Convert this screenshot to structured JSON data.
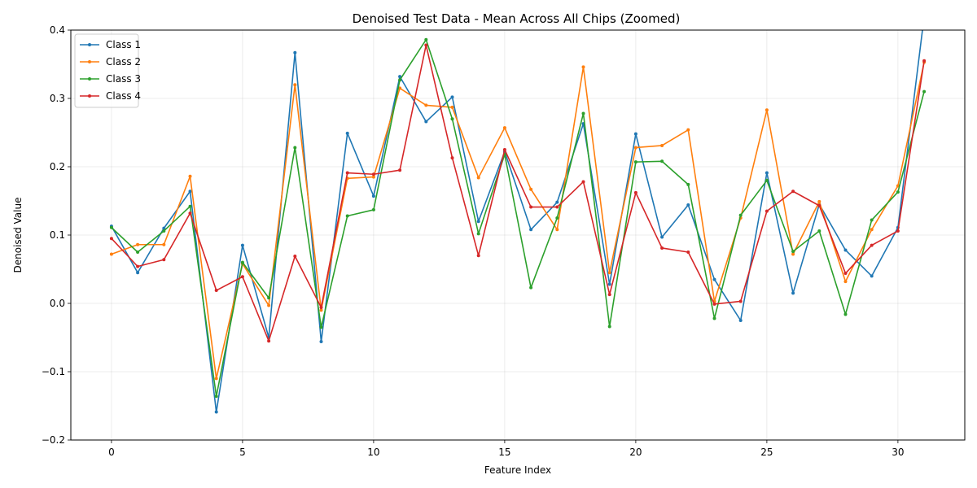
{
  "chart_data": {
    "type": "line",
    "title": "Denoised Test Data - Mean Across All Chips (Zoomed)",
    "xlabel": "Feature Index",
    "ylabel": "Denoised Value",
    "xlim": [
      -1.55,
      32.55
    ],
    "ylim": [
      -0.2,
      0.4
    ],
    "xticks": [
      0,
      5,
      10,
      15,
      20,
      25,
      30
    ],
    "yticks": [
      -0.2,
      -0.1,
      0.0,
      0.1,
      0.2,
      0.3,
      0.4
    ],
    "ytick_labels": [
      "−0.2",
      "−0.1",
      "0.0",
      "0.1",
      "0.2",
      "0.3",
      "0.4"
    ],
    "grid": true,
    "legend_position": "top-left",
    "x": [
      0,
      1,
      2,
      3,
      4,
      5,
      6,
      7,
      8,
      9,
      10,
      11,
      12,
      13,
      14,
      15,
      16,
      17,
      18,
      19,
      20,
      21,
      22,
      23,
      24,
      25,
      26,
      27,
      28,
      29,
      30,
      31
    ],
    "series": [
      {
        "name": "Class 1",
        "color": "#1f77b4",
        "values": [
          0.113,
          0.045,
          0.11,
          0.164,
          -0.159,
          0.085,
          -0.05,
          0.367,
          -0.056,
          0.249,
          0.157,
          0.332,
          0.266,
          0.302,
          0.12,
          0.222,
          0.108,
          0.148,
          0.263,
          0.028,
          0.248,
          0.097,
          0.144,
          0.035,
          -0.025,
          0.191,
          0.015,
          0.145,
          0.078,
          0.04,
          0.111,
          0.42
        ]
      },
      {
        "name": "Class 2",
        "color": "#ff7f0e",
        "values": [
          0.072,
          0.086,
          0.086,
          0.186,
          -0.11,
          0.058,
          -0.003,
          0.32,
          -0.01,
          0.183,
          0.185,
          0.315,
          0.29,
          0.287,
          0.184,
          0.257,
          0.167,
          0.108,
          0.346,
          0.045,
          0.228,
          0.231,
          0.254,
          0.003,
          0.125,
          0.283,
          0.072,
          0.149,
          0.032,
          0.108,
          0.172,
          0.353
        ]
      },
      {
        "name": "Class 3",
        "color": "#2ca02c",
        "values": [
          0.111,
          0.075,
          0.106,
          0.142,
          -0.136,
          0.06,
          0.008,
          0.228,
          -0.035,
          0.128,
          0.137,
          0.327,
          0.386,
          0.27,
          0.102,
          0.218,
          0.023,
          0.125,
          0.278,
          -0.034,
          0.207,
          0.208,
          0.174,
          -0.022,
          0.129,
          0.18,
          0.076,
          0.106,
          -0.016,
          0.122,
          0.163,
          0.31
        ]
      },
      {
        "name": "Class 4",
        "color": "#d62728",
        "values": [
          0.095,
          0.054,
          0.064,
          0.132,
          0.019,
          0.039,
          -0.055,
          0.069,
          -0.006,
          0.191,
          0.189,
          0.195,
          0.378,
          0.213,
          0.07,
          0.225,
          0.141,
          0.141,
          0.178,
          0.013,
          0.162,
          0.081,
          0.075,
          -0.001,
          0.003,
          0.135,
          0.164,
          0.143,
          0.044,
          0.085,
          0.106,
          0.355
        ]
      }
    ]
  }
}
